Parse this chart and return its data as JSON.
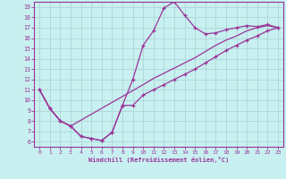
{
  "xlabel": "Windchill (Refroidissement éolien,°C)",
  "xlim": [
    -0.5,
    23.5
  ],
  "ylim": [
    5.5,
    19.5
  ],
  "xticks": [
    0,
    1,
    2,
    3,
    4,
    5,
    6,
    7,
    8,
    9,
    10,
    11,
    12,
    13,
    14,
    15,
    16,
    17,
    18,
    19,
    20,
    21,
    22,
    23
  ],
  "yticks": [
    6,
    7,
    8,
    9,
    10,
    11,
    12,
    13,
    14,
    15,
    16,
    17,
    18,
    19
  ],
  "background_color": "#c8f0f0",
  "line_color": "#993399",
  "grid_color": "#b0dada",
  "line1_x": [
    0,
    1,
    2,
    3,
    4,
    5,
    6,
    7,
    8,
    9,
    10,
    11,
    12,
    13,
    14,
    15,
    16,
    17,
    18,
    19,
    20,
    21,
    22,
    23
  ],
  "line1_y": [
    11.0,
    9.2,
    8.0,
    7.5,
    6.5,
    6.3,
    6.1,
    6.9,
    9.5,
    12.0,
    15.3,
    16.7,
    18.9,
    19.5,
    18.2,
    17.0,
    16.4,
    16.5,
    16.8,
    17.0,
    17.2,
    17.1,
    17.3,
    17.0
  ],
  "line2_x": [
    0,
    1,
    2,
    3,
    4,
    5,
    6,
    7,
    8,
    9,
    10,
    11,
    12,
    13,
    14,
    15,
    16,
    17,
    18,
    19,
    20,
    21,
    22,
    23
  ],
  "line2_y": [
    11.0,
    9.2,
    8.0,
    7.5,
    6.5,
    6.3,
    6.1,
    6.9,
    9.5,
    9.5,
    10.5,
    11.0,
    11.5,
    12.0,
    12.5,
    13.0,
    13.6,
    14.2,
    14.8,
    15.3,
    15.8,
    16.2,
    16.7,
    17.0
  ],
  "line3_x": [
    0,
    1,
    2,
    3,
    10,
    11,
    12,
    13,
    14,
    15,
    16,
    17,
    18,
    19,
    20,
    21,
    22,
    23
  ],
  "line3_y": [
    11.0,
    9.2,
    8.0,
    7.5,
    11.5,
    12.1,
    12.6,
    13.1,
    13.6,
    14.1,
    14.7,
    15.3,
    15.8,
    16.2,
    16.7,
    17.0,
    17.2,
    17.0
  ]
}
